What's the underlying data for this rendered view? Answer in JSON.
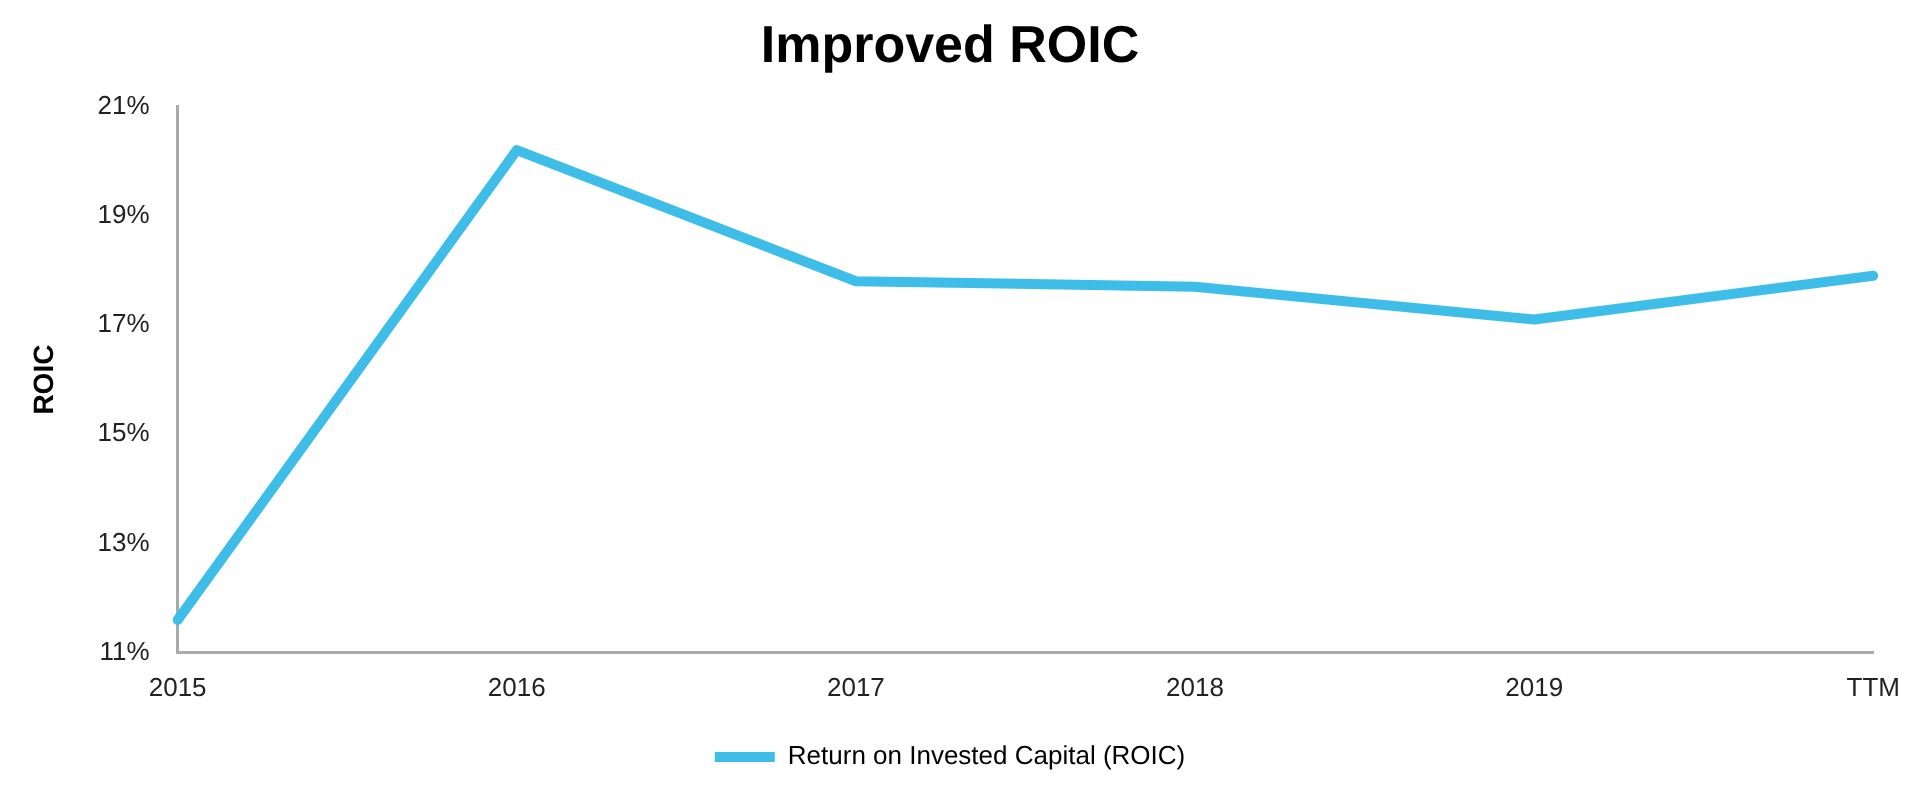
{
  "chart_data": {
    "type": "line",
    "title": "Improved ROIC",
    "ylabel": "ROIC",
    "categories": [
      "2015",
      "2016",
      "2017",
      "2018",
      "2019",
      "TTM"
    ],
    "series": [
      {
        "name": "Return on Invested Capital (ROIC)",
        "color": "#3ebde9",
        "values": [
          11.6,
          20.2,
          17.8,
          17.7,
          17.1,
          17.9
        ]
      }
    ],
    "ylim": [
      11,
      21
    ],
    "yticks": [
      {
        "value": 11,
        "label": "11%"
      },
      {
        "value": 13,
        "label": "13%"
      },
      {
        "value": 15,
        "label": "15%"
      },
      {
        "value": 17,
        "label": "17%"
      },
      {
        "value": 19,
        "label": "19%"
      },
      {
        "value": 21,
        "label": "21%"
      }
    ],
    "grid": false,
    "legend": "bottom",
    "marker": "none",
    "line_style": "solid"
  }
}
